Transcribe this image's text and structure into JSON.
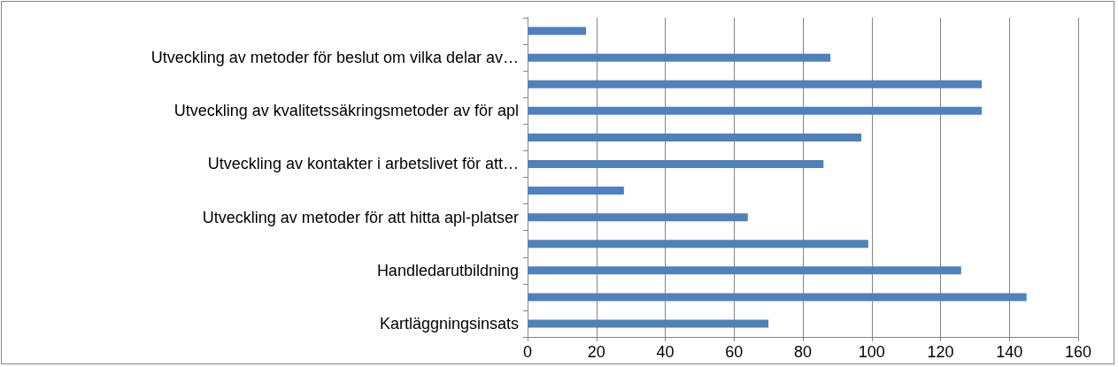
{
  "chart_data": {
    "type": "bar",
    "orientation": "horizontal",
    "categories": [
      null,
      "Utveckling av metoder för beslut om vilka delar av…",
      null,
      "Utveckling av kvalitetssäkringsmetoder av för apl",
      null,
      "Utveckling av kontakter i arbetslivet för att…",
      null,
      "Utveckling av metoder för att hitta apl-platser",
      null,
      "Handledarutbildning",
      null,
      "Kartläggningsinsats"
    ],
    "values": [
      17,
      88,
      132,
      132,
      97,
      86,
      28,
      64,
      99,
      126,
      145,
      70
    ],
    "color": "#4f81bd",
    "xlim": [
      0,
      160
    ],
    "xticks": [
      0,
      20,
      40,
      60,
      80,
      100,
      120,
      140,
      160
    ],
    "grid": "x"
  }
}
